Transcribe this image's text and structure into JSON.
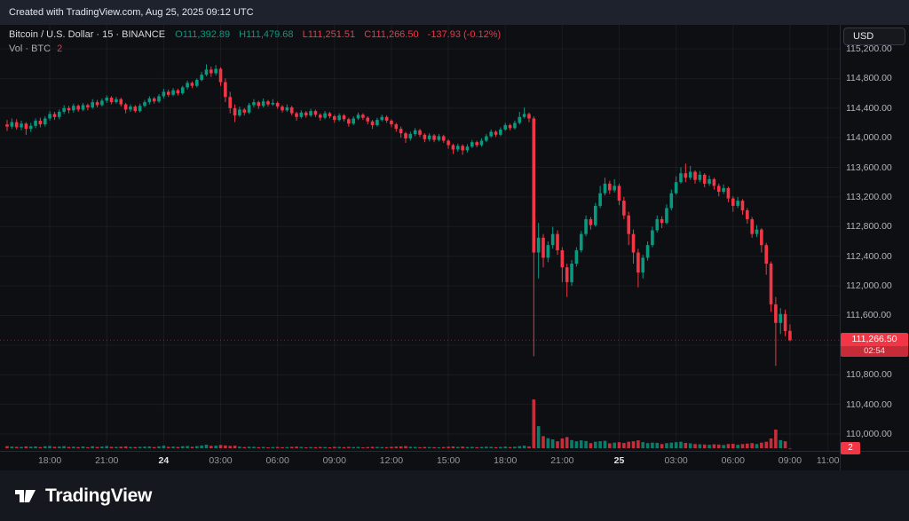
{
  "topbar": {
    "text": "Created with TradingView.com, Aug 25, 2025 09:12 UTC"
  },
  "header": {
    "symbol": "Bitcoin / U.S. Dollar · 15 · BINANCE",
    "ohlc": {
      "o_label": "O",
      "o": "111,392.89",
      "h_label": "H",
      "h": "111,479.68",
      "l_label": "L",
      "l": "111,251.51",
      "c_label": "C",
      "c": "111,266.50",
      "change": "-137.93 (-0.12%)"
    },
    "vol_label": "Vol · BTC",
    "vol_value": "2"
  },
  "axis": {
    "currency_button": "USD"
  },
  "badge": {
    "price": "111,266.50",
    "countdown": "02:54",
    "volume": "2"
  },
  "footer": {
    "brand": "TradingView"
  },
  "colors": {
    "up": "#089981",
    "down": "#f23645",
    "accent_badge": "#f23645",
    "axis_text": "#b2b5be"
  },
  "axes": {
    "price_labels": [
      {
        "value": 115200,
        "label": "115,200.00"
      },
      {
        "value": 114800,
        "label": "114,800.00"
      },
      {
        "value": 114400,
        "label": "114,400.00"
      },
      {
        "value": 114000,
        "label": "114,000.00"
      },
      {
        "value": 113600,
        "label": "113,600.00"
      },
      {
        "value": 113200,
        "label": "113,200.00"
      },
      {
        "value": 112800,
        "label": "112,800.00"
      },
      {
        "value": 112400,
        "label": "112,400.00"
      },
      {
        "value": 112000,
        "label": "112,000.00"
      },
      {
        "value": 111600,
        "label": "111,600.00"
      },
      {
        "value": 110800,
        "label": "110,800.00"
      },
      {
        "value": 110400,
        "label": "110,400.00"
      },
      {
        "value": 110000,
        "label": "110,000.00"
      }
    ],
    "time_labels": [
      {
        "i": 9,
        "label": "18:00",
        "major": false
      },
      {
        "i": 21,
        "label": "21:00",
        "major": false
      },
      {
        "i": 33,
        "label": "24",
        "major": true
      },
      {
        "i": 45,
        "label": "03:00",
        "major": false
      },
      {
        "i": 57,
        "label": "06:00",
        "major": false
      },
      {
        "i": 69,
        "label": "09:00",
        "major": false
      },
      {
        "i": 81,
        "label": "12:00",
        "major": false
      },
      {
        "i": 93,
        "label": "15:00",
        "major": false
      },
      {
        "i": 105,
        "label": "18:00",
        "major": false
      },
      {
        "i": 117,
        "label": "21:00",
        "major": false
      },
      {
        "i": 129,
        "label": "25",
        "major": true
      },
      {
        "i": 141,
        "label": "03:00",
        "major": false
      },
      {
        "i": 153,
        "label": "06:00",
        "major": false
      },
      {
        "i": 165,
        "label": "09:00",
        "major": false
      },
      {
        "i": 173,
        "label": "11:00",
        "major": false
      }
    ]
  },
  "chart_data": {
    "type": "candlestick",
    "title": "Bitcoin / U.S. Dollar, 15 minute, BINANCE",
    "interval_minutes": 15,
    "start_time": "2025-08-23 15:45 UTC",
    "end_time": "2025-08-25 09:12 UTC",
    "price_axis_range": [
      110000,
      115200
    ],
    "price_axis_step": 400,
    "last_price": 111266.5,
    "last_change": -137.93,
    "last_change_pct": -0.12,
    "last_volume": 2,
    "candles": [
      [
        114180,
        114240,
        114090,
        114150,
        90
      ],
      [
        114150,
        114260,
        114120,
        114210,
        70
      ],
      [
        114210,
        114250,
        114110,
        114140,
        60
      ],
      [
        114140,
        114230,
        114100,
        114190,
        55
      ],
      [
        114190,
        114210,
        114040,
        114120,
        80
      ],
      [
        114120,
        114200,
        114080,
        114160,
        65
      ],
      [
        114160,
        114260,
        114130,
        114230,
        75
      ],
      [
        114230,
        114270,
        114140,
        114180,
        50
      ],
      [
        114180,
        114290,
        114150,
        114260,
        85
      ],
      [
        114260,
        114360,
        114230,
        114320,
        95
      ],
      [
        114320,
        114350,
        114240,
        114280,
        60
      ],
      [
        114280,
        114380,
        114250,
        114350,
        70
      ],
      [
        114350,
        114440,
        114320,
        114400,
        90
      ],
      [
        114400,
        114430,
        114330,
        114370,
        55
      ],
      [
        114370,
        114460,
        114340,
        114430,
        65
      ],
      [
        114430,
        114450,
        114350,
        114380,
        50
      ],
      [
        114380,
        114470,
        114360,
        114440,
        75
      ],
      [
        114440,
        114460,
        114370,
        114410,
        45
      ],
      [
        114410,
        114520,
        114390,
        114480,
        85
      ],
      [
        114480,
        114510,
        114410,
        114440,
        55
      ],
      [
        114440,
        114530,
        114420,
        114500,
        70
      ],
      [
        114500,
        114570,
        114470,
        114540,
        95
      ],
      [
        114540,
        114560,
        114450,
        114480,
        60
      ],
      [
        114480,
        114550,
        114460,
        114520,
        55
      ],
      [
        114520,
        114540,
        114420,
        114450,
        65
      ],
      [
        114450,
        114470,
        114330,
        114380,
        80
      ],
      [
        114380,
        114450,
        114350,
        114420,
        55
      ],
      [
        114420,
        114440,
        114340,
        114360,
        50
      ],
      [
        114360,
        114460,
        114340,
        114430,
        60
      ],
      [
        114430,
        114510,
        114410,
        114480,
        70
      ],
      [
        114480,
        114560,
        114450,
        114530,
        75
      ],
      [
        114530,
        114550,
        114460,
        114490,
        50
      ],
      [
        114490,
        114590,
        114470,
        114560,
        80
      ],
      [
        114560,
        114660,
        114530,
        114620,
        110
      ],
      [
        114620,
        114650,
        114550,
        114580,
        60
      ],
      [
        114580,
        114670,
        114560,
        114640,
        70
      ],
      [
        114640,
        114660,
        114570,
        114600,
        55
      ],
      [
        114600,
        114700,
        114580,
        114680,
        85
      ],
      [
        114680,
        114770,
        114650,
        114740,
        95
      ],
      [
        114740,
        114760,
        114670,
        114700,
        60
      ],
      [
        114700,
        114800,
        114680,
        114780,
        90
      ],
      [
        114780,
        114890,
        114760,
        114850,
        120
      ],
      [
        114850,
        114990,
        114830,
        114920,
        150
      ],
      [
        114920,
        114960,
        114820,
        114870,
        100
      ],
      [
        114870,
        114980,
        114840,
        114930,
        110
      ],
      [
        114930,
        114950,
        114700,
        114750,
        140
      ],
      [
        114750,
        114800,
        114480,
        114550,
        120
      ],
      [
        114550,
        114620,
        114330,
        114400,
        100
      ],
      [
        114400,
        114450,
        114210,
        114300,
        110
      ],
      [
        114300,
        114420,
        114280,
        114380,
        70
      ],
      [
        114380,
        114400,
        114300,
        114340,
        50
      ],
      [
        114340,
        114470,
        114320,
        114440,
        65
      ],
      [
        114440,
        114520,
        114410,
        114480,
        60
      ],
      [
        114480,
        114500,
        114390,
        114430,
        45
      ],
      [
        114430,
        114530,
        114410,
        114490,
        55
      ],
      [
        114490,
        114510,
        114420,
        114450,
        40
      ],
      [
        114450,
        114520,
        114430,
        114470,
        50
      ],
      [
        114470,
        114490,
        114390,
        114420,
        55
      ],
      [
        114420,
        114440,
        114340,
        114370,
        45
      ],
      [
        114370,
        114450,
        114350,
        114410,
        50
      ],
      [
        114410,
        114430,
        114300,
        114330,
        60
      ],
      [
        114330,
        114350,
        114230,
        114280,
        70
      ],
      [
        114280,
        114370,
        114260,
        114340,
        55
      ],
      [
        114340,
        114360,
        114270,
        114300,
        40
      ],
      [
        114300,
        114390,
        114280,
        114360,
        50
      ],
      [
        114360,
        114380,
        114280,
        114310,
        45
      ],
      [
        114310,
        114330,
        114230,
        114270,
        55
      ],
      [
        114270,
        114360,
        114250,
        114330,
        50
      ],
      [
        114330,
        114350,
        114260,
        114290,
        40
      ],
      [
        114290,
        114310,
        114200,
        114240,
        60
      ],
      [
        114240,
        114330,
        114220,
        114300,
        55
      ],
      [
        114300,
        114320,
        114220,
        114250,
        45
      ],
      [
        114250,
        114270,
        114150,
        114190,
        60
      ],
      [
        114190,
        114290,
        114170,
        114260,
        50
      ],
      [
        114260,
        114340,
        114240,
        114310,
        55
      ],
      [
        114310,
        114330,
        114240,
        114270,
        40
      ],
      [
        114270,
        114290,
        114180,
        114220,
        50
      ],
      [
        114220,
        114240,
        114120,
        114170,
        60
      ],
      [
        114170,
        114270,
        114150,
        114240,
        55
      ],
      [
        114240,
        114310,
        114220,
        114280,
        50
      ],
      [
        114280,
        114300,
        114200,
        114230,
        45
      ],
      [
        114230,
        114250,
        114140,
        114180,
        60
      ],
      [
        114180,
        114200,
        114080,
        114120,
        70
      ],
      [
        114120,
        114150,
        114000,
        114060,
        80
      ],
      [
        114060,
        114080,
        113930,
        113990,
        90
      ],
      [
        113990,
        114080,
        113960,
        114050,
        60
      ],
      [
        114050,
        114130,
        114020,
        114100,
        55
      ],
      [
        114100,
        114120,
        114010,
        114040,
        45
      ],
      [
        114040,
        114060,
        113940,
        113980,
        55
      ],
      [
        113980,
        114060,
        113950,
        114030,
        50
      ],
      [
        114030,
        114050,
        113940,
        113970,
        45
      ],
      [
        113970,
        114050,
        113950,
        114020,
        40
      ],
      [
        114020,
        114040,
        113930,
        113960,
        50
      ],
      [
        113960,
        113980,
        113850,
        113900,
        65
      ],
      [
        113900,
        113920,
        113780,
        113840,
        75
      ],
      [
        113840,
        113920,
        113810,
        113890,
        55
      ],
      [
        113890,
        113910,
        113770,
        113830,
        70
      ],
      [
        113830,
        113910,
        113800,
        113880,
        50
      ],
      [
        113880,
        113970,
        113860,
        113940,
        60
      ],
      [
        113940,
        113960,
        113870,
        113900,
        45
      ],
      [
        113900,
        113990,
        113880,
        113960,
        55
      ],
      [
        113960,
        114050,
        113940,
        114020,
        65
      ],
      [
        114020,
        114110,
        114000,
        114080,
        60
      ],
      [
        114080,
        114100,
        114010,
        114040,
        45
      ],
      [
        114040,
        114140,
        114020,
        114110,
        55
      ],
      [
        114110,
        114200,
        114090,
        114170,
        70
      ],
      [
        114170,
        114190,
        114100,
        114130,
        50
      ],
      [
        114130,
        114230,
        114110,
        114200,
        65
      ],
      [
        114200,
        114350,
        114180,
        114280,
        90
      ],
      [
        114280,
        114410,
        114260,
        114320,
        110
      ],
      [
        114320,
        114340,
        114210,
        114260,
        80
      ],
      [
        114260,
        114290,
        111050,
        112450,
        2100
      ],
      [
        112450,
        112850,
        112100,
        112650,
        950
      ],
      [
        112650,
        112700,
        112250,
        112380,
        520
      ],
      [
        112380,
        112600,
        112320,
        112550,
        430
      ],
      [
        112550,
        112800,
        112500,
        112700,
        380
      ],
      [
        112700,
        112750,
        112420,
        112480,
        300
      ],
      [
        112480,
        112520,
        112050,
        112250,
        420
      ],
      [
        112250,
        112300,
        111850,
        112050,
        480
      ],
      [
        112050,
        112350,
        112000,
        112300,
        350
      ],
      [
        112300,
        112520,
        112260,
        112480,
        300
      ],
      [
        112480,
        112740,
        112450,
        112700,
        340
      ],
      [
        112700,
        112950,
        112670,
        112900,
        310
      ],
      [
        112900,
        112930,
        112760,
        112820,
        220
      ],
      [
        112820,
        113120,
        112800,
        113080,
        280
      ],
      [
        113080,
        113350,
        113050,
        113250,
        300
      ],
      [
        113250,
        113460,
        113220,
        113380,
        320
      ],
      [
        113380,
        113420,
        113240,
        113290,
        210
      ],
      [
        113290,
        113440,
        113260,
        113350,
        240
      ],
      [
        113350,
        113380,
        113090,
        113150,
        260
      ],
      [
        113150,
        113200,
        112900,
        112950,
        230
      ],
      [
        112950,
        113000,
        112550,
        112700,
        280
      ],
      [
        112700,
        112760,
        112300,
        112450,
        300
      ],
      [
        112450,
        112500,
        111980,
        112180,
        340
      ],
      [
        112180,
        112420,
        112100,
        112380,
        260
      ],
      [
        112380,
        112600,
        112340,
        112550,
        220
      ],
      [
        112550,
        112800,
        112520,
        112750,
        240
      ],
      [
        112750,
        112950,
        112720,
        112900,
        230
      ],
      [
        112900,
        112940,
        112780,
        112850,
        180
      ],
      [
        112850,
        113100,
        112830,
        113050,
        220
      ],
      [
        113050,
        113300,
        113020,
        113250,
        240
      ],
      [
        113250,
        113480,
        113230,
        113400,
        260
      ],
      [
        113400,
        113600,
        113380,
        113520,
        280
      ],
      [
        113520,
        113650,
        113400,
        113460,
        230
      ],
      [
        113460,
        113620,
        113430,
        113540,
        210
      ],
      [
        113540,
        113560,
        113380,
        113430,
        180
      ],
      [
        113430,
        113550,
        113400,
        113500,
        170
      ],
      [
        113500,
        113520,
        113330,
        113380,
        160
      ],
      [
        113380,
        113490,
        113350,
        113440,
        150
      ],
      [
        113440,
        113460,
        113300,
        113350,
        170
      ],
      [
        113350,
        113380,
        113210,
        113270,
        160
      ],
      [
        113270,
        113370,
        113240,
        113320,
        140
      ],
      [
        113320,
        113340,
        113130,
        113180,
        180
      ],
      [
        113180,
        113210,
        113000,
        113080,
        190
      ],
      [
        113080,
        113200,
        113050,
        113150,
        150
      ],
      [
        113150,
        113170,
        112960,
        113020,
        180
      ],
      [
        113020,
        113050,
        112840,
        112900,
        200
      ],
      [
        112900,
        112930,
        112650,
        112700,
        220
      ],
      [
        112700,
        112820,
        112660,
        112760,
        180
      ],
      [
        112760,
        112780,
        112450,
        112550,
        240
      ],
      [
        112550,
        112580,
        112150,
        112300,
        280
      ],
      [
        112300,
        112330,
        111650,
        111750,
        420
      ],
      [
        111750,
        111850,
        110920,
        111500,
        800
      ],
      [
        111500,
        111700,
        111350,
        111620,
        350
      ],
      [
        111620,
        111680,
        111320,
        111390,
        300
      ],
      [
        111392.89,
        111479.68,
        111251.51,
        111266.5,
        2
      ]
    ]
  }
}
